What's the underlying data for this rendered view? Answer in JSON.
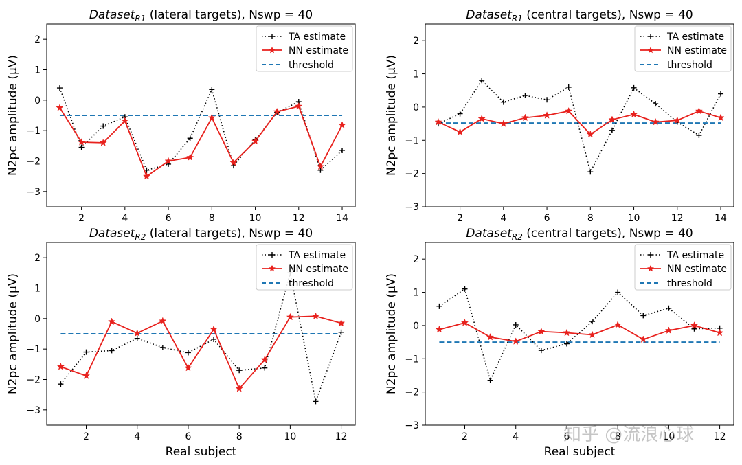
{
  "watermark": "知乎 @流浪心球",
  "legend_labels": {
    "ta": "TA estimate",
    "nn": "NN estimate",
    "th": "threshold"
  },
  "colors": {
    "ta": "#000000",
    "nn": "#e8211d",
    "th": "#1f77b4",
    "axis": "#000000"
  },
  "chart_data": [
    {
      "type": "line",
      "title_prefix": "Dataset",
      "title_sub": "R1",
      "title_suffix": " (lateral targets), Nswp = 40",
      "xlabel": "",
      "ylabel": "N2pc amplitude (μV)",
      "xlim": [
        0.4,
        14.6
      ],
      "ylim": [
        -3.5,
        2.5
      ],
      "xticks": [
        2,
        4,
        6,
        8,
        10,
        12,
        14
      ],
      "yticks": [
        -3,
        -2,
        -1,
        0,
        1,
        2
      ],
      "legend": "top-right",
      "x": [
        1,
        2,
        3,
        4,
        5,
        6,
        7,
        8,
        9,
        10,
        11,
        12,
        13,
        14
      ],
      "series": [
        {
          "name": "TA estimate",
          "values": [
            0.4,
            -1.55,
            -0.85,
            -0.55,
            -2.3,
            -2.1,
            -1.25,
            0.35,
            -2.15,
            -1.3,
            -0.4,
            -0.05,
            -2.3,
            -1.65
          ]
        },
        {
          "name": "NN estimate",
          "values": [
            -0.25,
            -1.38,
            -1.4,
            -0.68,
            -2.5,
            -2.0,
            -1.88,
            -0.58,
            -2.05,
            -1.35,
            -0.38,
            -0.2,
            -2.18,
            -0.82
          ]
        }
      ],
      "threshold": -0.5
    },
    {
      "type": "line",
      "title_prefix": "Dataset",
      "title_sub": "R1",
      "title_suffix": " (central targets), Nswp = 40",
      "xlabel": "",
      "ylabel": "N2pc amplitude (μV)",
      "xlim": [
        0.4,
        14.6
      ],
      "ylim": [
        -3,
        2.5
      ],
      "xticks": [
        2,
        4,
        6,
        8,
        10,
        12,
        14
      ],
      "yticks": [
        -3,
        -2,
        -1,
        0,
        1,
        2
      ],
      "legend": "top-right",
      "x": [
        1,
        2,
        3,
        4,
        5,
        6,
        7,
        8,
        9,
        10,
        11,
        12,
        13,
        14
      ],
      "series": [
        {
          "name": "TA estimate",
          "values": [
            -0.5,
            -0.2,
            0.8,
            0.15,
            0.35,
            0.22,
            0.6,
            -1.95,
            -0.7,
            0.58,
            0.1,
            -0.45,
            -0.85,
            0.4
          ]
        },
        {
          "name": "NN estimate",
          "values": [
            -0.45,
            -0.75,
            -0.35,
            -0.5,
            -0.32,
            -0.25,
            -0.12,
            -0.82,
            -0.38,
            -0.22,
            -0.45,
            -0.4,
            -0.12,
            -0.32
          ]
        }
      ],
      "threshold": -0.48
    },
    {
      "type": "line",
      "title_prefix": "Dataset",
      "title_sub": "R2",
      "title_suffix": " (lateral targets), Nswp = 40",
      "xlabel": "Real subject",
      "ylabel": "N2pc amplitude (μV)",
      "xlim": [
        0.45,
        12.55
      ],
      "ylim": [
        -3.5,
        2.5
      ],
      "xticks": [
        2,
        4,
        6,
        8,
        10,
        12
      ],
      "yticks": [
        -3,
        -2,
        -1,
        0,
        1,
        2
      ],
      "legend": "top-right",
      "x": [
        1,
        2,
        3,
        4,
        5,
        6,
        7,
        8,
        9,
        10,
        11,
        12
      ],
      "series": [
        {
          "name": "TA estimate",
          "values": [
            -2.15,
            -1.1,
            -1.05,
            -0.65,
            -0.95,
            -1.12,
            -0.68,
            -1.7,
            -1.62,
            1.5,
            -2.72,
            -0.45
          ]
        },
        {
          "name": "NN estimate",
          "values": [
            -1.58,
            -1.88,
            -0.1,
            -0.48,
            -0.08,
            -1.62,
            -0.35,
            -2.3,
            -1.35,
            0.05,
            0.08,
            -0.15
          ]
        }
      ],
      "threshold": -0.5
    },
    {
      "type": "line",
      "title_prefix": "Dataset",
      "title_sub": "R2",
      "title_suffix": " (central targets), Nswp = 40",
      "xlabel": "Real subject",
      "ylabel": "N2pc amplitude (μV)",
      "xlim": [
        0.45,
        12.55
      ],
      "ylim": [
        -3,
        2.5
      ],
      "xticks": [
        2,
        4,
        6,
        8,
        10,
        12
      ],
      "yticks": [
        -3,
        -2,
        -1,
        0,
        1,
        2
      ],
      "legend": "top-right",
      "x": [
        1,
        2,
        3,
        4,
        5,
        6,
        7,
        8,
        9,
        10,
        11,
        12
      ],
      "series": [
        {
          "name": "TA estimate",
          "values": [
            0.58,
            1.1,
            -1.65,
            0.02,
            -0.75,
            -0.55,
            0.12,
            1.0,
            0.3,
            0.52,
            -0.1,
            -0.08
          ]
        },
        {
          "name": "NN estimate",
          "values": [
            -0.12,
            0.08,
            -0.35,
            -0.48,
            -0.18,
            -0.22,
            -0.28,
            0.02,
            -0.42,
            -0.15,
            0.0,
            -0.22
          ]
        }
      ],
      "threshold": -0.5
    }
  ]
}
